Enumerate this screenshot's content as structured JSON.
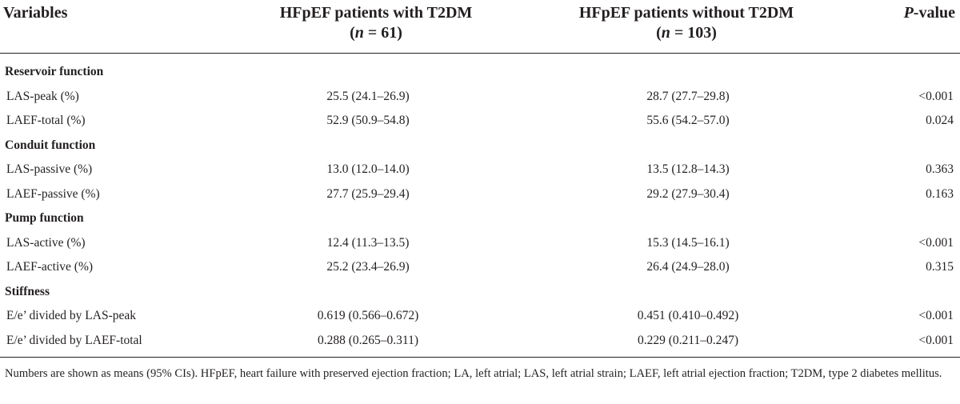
{
  "header": {
    "variables": "Variables",
    "group1_title": "HFpEF patients with T2DM",
    "group1_n_sym": "n",
    "group1_n_val": " = 61",
    "group2_title": "HFpEF patients without T2DM",
    "group2_n_sym": "n",
    "group2_n_val": " = 103",
    "pvalue_italic": "P",
    "pvalue_rest": "-value"
  },
  "rows": [
    {
      "type": "section",
      "label": "Reservoir function"
    },
    {
      "type": "data",
      "label": "LAS-peak (%)",
      "g1": "25.5 (24.1–26.9)",
      "g2": "28.7 (27.7–29.8)",
      "p": "<0.001"
    },
    {
      "type": "data",
      "label": "LAEF-total (%)",
      "g1": "52.9 (50.9–54.8)",
      "g2": "55.6 (54.2–57.0)",
      "p": "0.024"
    },
    {
      "type": "section",
      "label": "Conduit function"
    },
    {
      "type": "data",
      "label": "LAS-passive (%)",
      "g1": "13.0 (12.0–14.0)",
      "g2": "13.5 (12.8–14.3)",
      "p": "0.363"
    },
    {
      "type": "data",
      "label": "LAEF-passive (%)",
      "g1": "27.7 (25.9–29.4)",
      "g2": "29.2 (27.9–30.4)",
      "p": "0.163"
    },
    {
      "type": "section",
      "label": "Pump function"
    },
    {
      "type": "data",
      "label": "LAS-active (%)",
      "g1": "12.4 (11.3–13.5)",
      "g2": "15.3 (14.5–16.1)",
      "p": "<0.001"
    },
    {
      "type": "data",
      "label": "LAEF-active (%)",
      "g1": "25.2 (23.4–26.9)",
      "g2": "26.4 (24.9–28.0)",
      "p": "0.315"
    },
    {
      "type": "section",
      "label": "Stiffness"
    },
    {
      "type": "data",
      "label": "E/e’ divided by LAS-peak",
      "g1": "0.619 (0.566–0.672)",
      "g2": "0.451 (0.410–0.492)",
      "p": "<0.001"
    },
    {
      "type": "data",
      "label": "E/e’ divided by LAEF-total",
      "g1": "0.288 (0.265–0.311)",
      "g2": "0.229 (0.211–0.247)",
      "p": "<0.001"
    }
  ],
  "footnote": "Numbers are shown as means (95% CIs). HFpEF, heart failure with preserved ejection fraction; LA, left atrial; LAS, left atrial strain; LAEF, left atrial ejection fraction; T2DM, type 2 diabetes mellitus."
}
